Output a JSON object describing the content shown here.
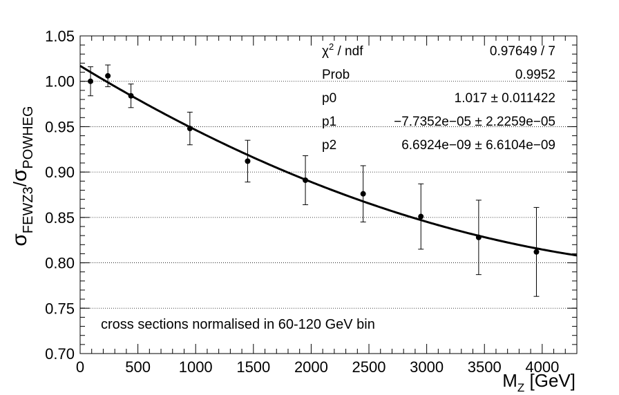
{
  "chart_data": {
    "type": "scatter",
    "xlabel": "M_Z [GeV]",
    "ylabel": "σ_FEWZ3/σ_POWHEG",
    "xlim": [
      0,
      4300
    ],
    "ylim": [
      0.7,
      1.05
    ],
    "x_ticks": [
      "0",
      "500",
      "1000",
      "1500",
      "2000",
      "2500",
      "3000",
      "3500",
      "4000"
    ],
    "y_ticks": [
      "0.70",
      "0.75",
      "0.80",
      "0.85",
      "0.90",
      "0.95",
      "1.00",
      "1.05"
    ],
    "grid": "horizontal-dotted",
    "points": [
      {
        "x": 90,
        "y": 1.0,
        "err": 0.016
      },
      {
        "x": 240,
        "y": 1.006,
        "err": 0.012
      },
      {
        "x": 440,
        "y": 0.984,
        "err": 0.013
      },
      {
        "x": 950,
        "y": 0.948,
        "err": 0.018
      },
      {
        "x": 1450,
        "y": 0.912,
        "err": 0.023
      },
      {
        "x": 1950,
        "y": 0.891,
        "err": 0.027
      },
      {
        "x": 2450,
        "y": 0.876,
        "err": 0.031
      },
      {
        "x": 2950,
        "y": 0.851,
        "err": 0.036
      },
      {
        "x": 3450,
        "y": 0.828,
        "err": 0.041
      },
      {
        "x": 3950,
        "y": 0.812,
        "err": 0.049
      }
    ],
    "fit": {
      "p0": 1.017,
      "p1": -7.7352e-05,
      "p2": 6.6924e-09,
      "x_range": [
        0,
        4300
      ]
    },
    "stats": {
      "rows": [
        {
          "label": "χ² / ndf",
          "value": "0.97649 / 7"
        },
        {
          "label": "Prob",
          "value": "0.9952"
        },
        {
          "label": "p0",
          "value": "1.017 ± 0.011422"
        },
        {
          "label": "p1",
          "value": "−7.7352e−05 ± 2.2259e−05"
        },
        {
          "label": "p2",
          "value": "6.6924e−09 ± 6.6104e−09"
        }
      ]
    },
    "annotation": "cross sections normalised in 60-120 GeV bin"
  }
}
